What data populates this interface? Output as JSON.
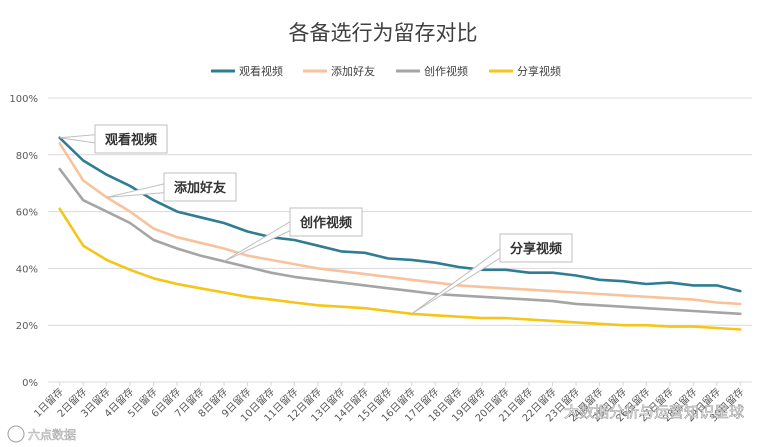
{
  "chart_data": {
    "type": "line",
    "title": "各备选行为留存对比",
    "xlabel": "",
    "ylabel": "",
    "ylim": [
      0,
      100
    ],
    "yticks": [
      "0%",
      "20%",
      "40%",
      "60%",
      "80%",
      "100%"
    ],
    "grid": true,
    "legend_position": "top",
    "categories": [
      "1日留存",
      "2日留存",
      "3日留存",
      "4日留存",
      "5日留存",
      "6日留存",
      "7日留存",
      "8日留存",
      "9日留存",
      "10日留存",
      "11日留存",
      "12日留存",
      "13日留存",
      "14日留存",
      "15日留存",
      "16日留存",
      "17日留存",
      "18日留存",
      "19日留存",
      "20日留存",
      "21日留存",
      "22日留存",
      "23日留存",
      "24日留存",
      "25日留存",
      "26日留存",
      "27日留存",
      "28日留存",
      "29日留存",
      "30日留存"
    ],
    "series": [
      {
        "name": "观看视频",
        "color": "#2E7D92",
        "values": [
          86,
          78,
          73,
          69,
          64,
          60,
          58,
          56,
          53,
          51,
          50,
          48,
          46,
          45.5,
          43.5,
          43,
          42,
          40.5,
          39.5,
          39.5,
          38.5,
          38.5,
          37.5,
          36,
          35.5,
          34.5,
          35,
          34,
          34,
          32
        ]
      },
      {
        "name": "添加好友",
        "color": "#F8C29C",
        "values": [
          84,
          71,
          65,
          60,
          54,
          51,
          49,
          47,
          44.5,
          43,
          41.5,
          40,
          39,
          38,
          37,
          36,
          35,
          34,
          33.5,
          33,
          32.5,
          32,
          31.5,
          31,
          30.5,
          30,
          29.5,
          29,
          28,
          27.5
        ]
      },
      {
        "name": "创作视频",
        "color": "#A5A5A5",
        "values": [
          75,
          64,
          60,
          56,
          50,
          47,
          44.5,
          42.5,
          40.5,
          38.5,
          37,
          36,
          35,
          34,
          33,
          32,
          31,
          30.5,
          30,
          29.5,
          29,
          28.5,
          27.5,
          27,
          26.5,
          26,
          25.5,
          25,
          24.5,
          24
        ]
      },
      {
        "name": "分享视频",
        "color": "#F5C518",
        "values": [
          61,
          48,
          43,
          39.5,
          36.5,
          34.5,
          33,
          31.5,
          30,
          29,
          28,
          27,
          26.5,
          26,
          25,
          24,
          23.5,
          23,
          22.5,
          22.5,
          22,
          21.5,
          21,
          20.5,
          20,
          20,
          19.5,
          19.5,
          19,
          18.5
        ]
      }
    ],
    "annotations": [
      "观看视频",
      "添加好友",
      "创作视频",
      "分享视频"
    ]
  },
  "watermarks": [
    "大数据分析与运营知识星球",
    "六点数据"
  ]
}
